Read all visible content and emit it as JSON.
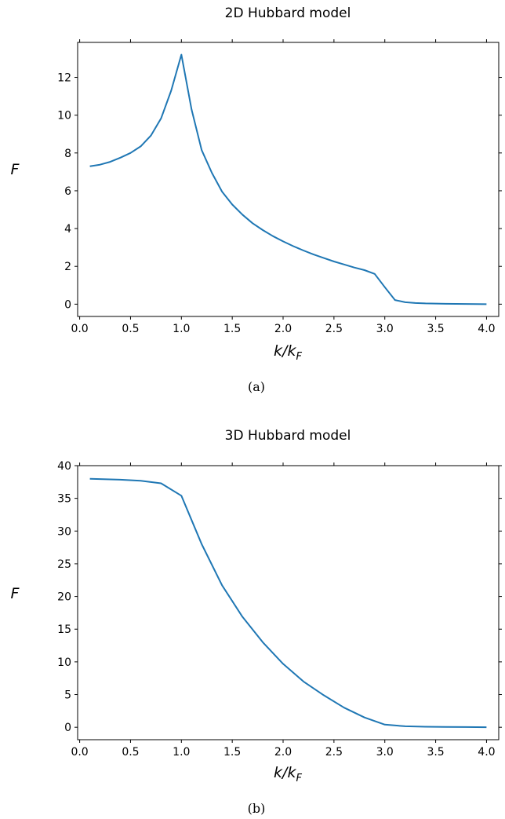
{
  "chart_data": [
    {
      "type": "line",
      "title": "2D Hubbard model",
      "xlabel_main": "k/k",
      "xlabel_sub": "F",
      "ylabel": "F",
      "caption": "(a)",
      "xlim": [
        -0.02,
        4.12
      ],
      "ylim": [
        -0.65,
        13.85
      ],
      "xticks": [
        0.0,
        0.5,
        1.0,
        1.5,
        2.0,
        2.5,
        3.0,
        3.5,
        4.0
      ],
      "xtick_labels": [
        "0.0",
        "0.5",
        "1.0",
        "1.5",
        "2.0",
        "2.5",
        "3.0",
        "3.5",
        "4.0"
      ],
      "yticks": [
        0,
        2,
        4,
        6,
        8,
        10,
        12
      ],
      "ytick_labels": [
        "0",
        "2",
        "4",
        "6",
        "8",
        "10",
        "12"
      ],
      "grid": false,
      "series": [
        {
          "color": "#1f77b4",
          "x": [
            0.1,
            0.2,
            0.3,
            0.4,
            0.5,
            0.6,
            0.7,
            0.8,
            0.9,
            1.0,
            1.1,
            1.2,
            1.3,
            1.4,
            1.5,
            1.6,
            1.7,
            1.8,
            1.9,
            2.0,
            2.1,
            2.2,
            2.3,
            2.4,
            2.5,
            2.6,
            2.7,
            2.8,
            2.9,
            3.0,
            3.1,
            3.2,
            3.3,
            3.4,
            3.5,
            3.6,
            3.7,
            3.8,
            3.9,
            4.0
          ],
          "y": [
            7.3,
            7.38,
            7.53,
            7.75,
            8.0,
            8.35,
            8.92,
            9.83,
            11.3,
            13.2,
            10.3,
            8.15,
            6.95,
            5.95,
            5.27,
            4.74,
            4.28,
            3.92,
            3.6,
            3.32,
            3.07,
            2.84,
            2.63,
            2.44,
            2.26,
            2.1,
            1.94,
            1.8,
            1.6,
            0.9,
            0.22,
            0.1,
            0.06,
            0.04,
            0.03,
            0.02,
            0.015,
            0.01,
            0.005,
            0.0
          ]
        }
      ]
    },
    {
      "type": "line",
      "title": "3D Hubbard model",
      "xlabel_main": "k/k",
      "xlabel_sub": "F",
      "ylabel": "F",
      "caption": "(b)",
      "xlim": [
        -0.02,
        4.12
      ],
      "ylim": [
        -1.9,
        40.0
      ],
      "xticks": [
        0.0,
        0.5,
        1.0,
        1.5,
        2.0,
        2.5,
        3.0,
        3.5,
        4.0
      ],
      "xtick_labels": [
        "0.0",
        "0.5",
        "1.0",
        "1.5",
        "2.0",
        "2.5",
        "3.0",
        "3.5",
        "4.0"
      ],
      "yticks": [
        0,
        5,
        10,
        15,
        20,
        25,
        30,
        35,
        40
      ],
      "ytick_labels": [
        "0",
        "5",
        "10",
        "15",
        "20",
        "25",
        "30",
        "35",
        "40"
      ],
      "grid": false,
      "series": [
        {
          "color": "#1f77b4",
          "x": [
            0.1,
            0.2,
            0.4,
            0.6,
            0.8,
            1.0,
            1.2,
            1.4,
            1.6,
            1.8,
            2.0,
            2.2,
            2.4,
            2.6,
            2.8,
            3.0,
            3.2,
            3.4,
            3.6,
            3.8,
            4.0
          ],
          "y": [
            38.0,
            37.95,
            37.85,
            37.7,
            37.3,
            35.4,
            28.0,
            21.7,
            16.9,
            13.0,
            9.7,
            7.0,
            4.9,
            3.0,
            1.5,
            0.4,
            0.15,
            0.08,
            0.05,
            0.03,
            0.01
          ]
        }
      ]
    }
  ]
}
